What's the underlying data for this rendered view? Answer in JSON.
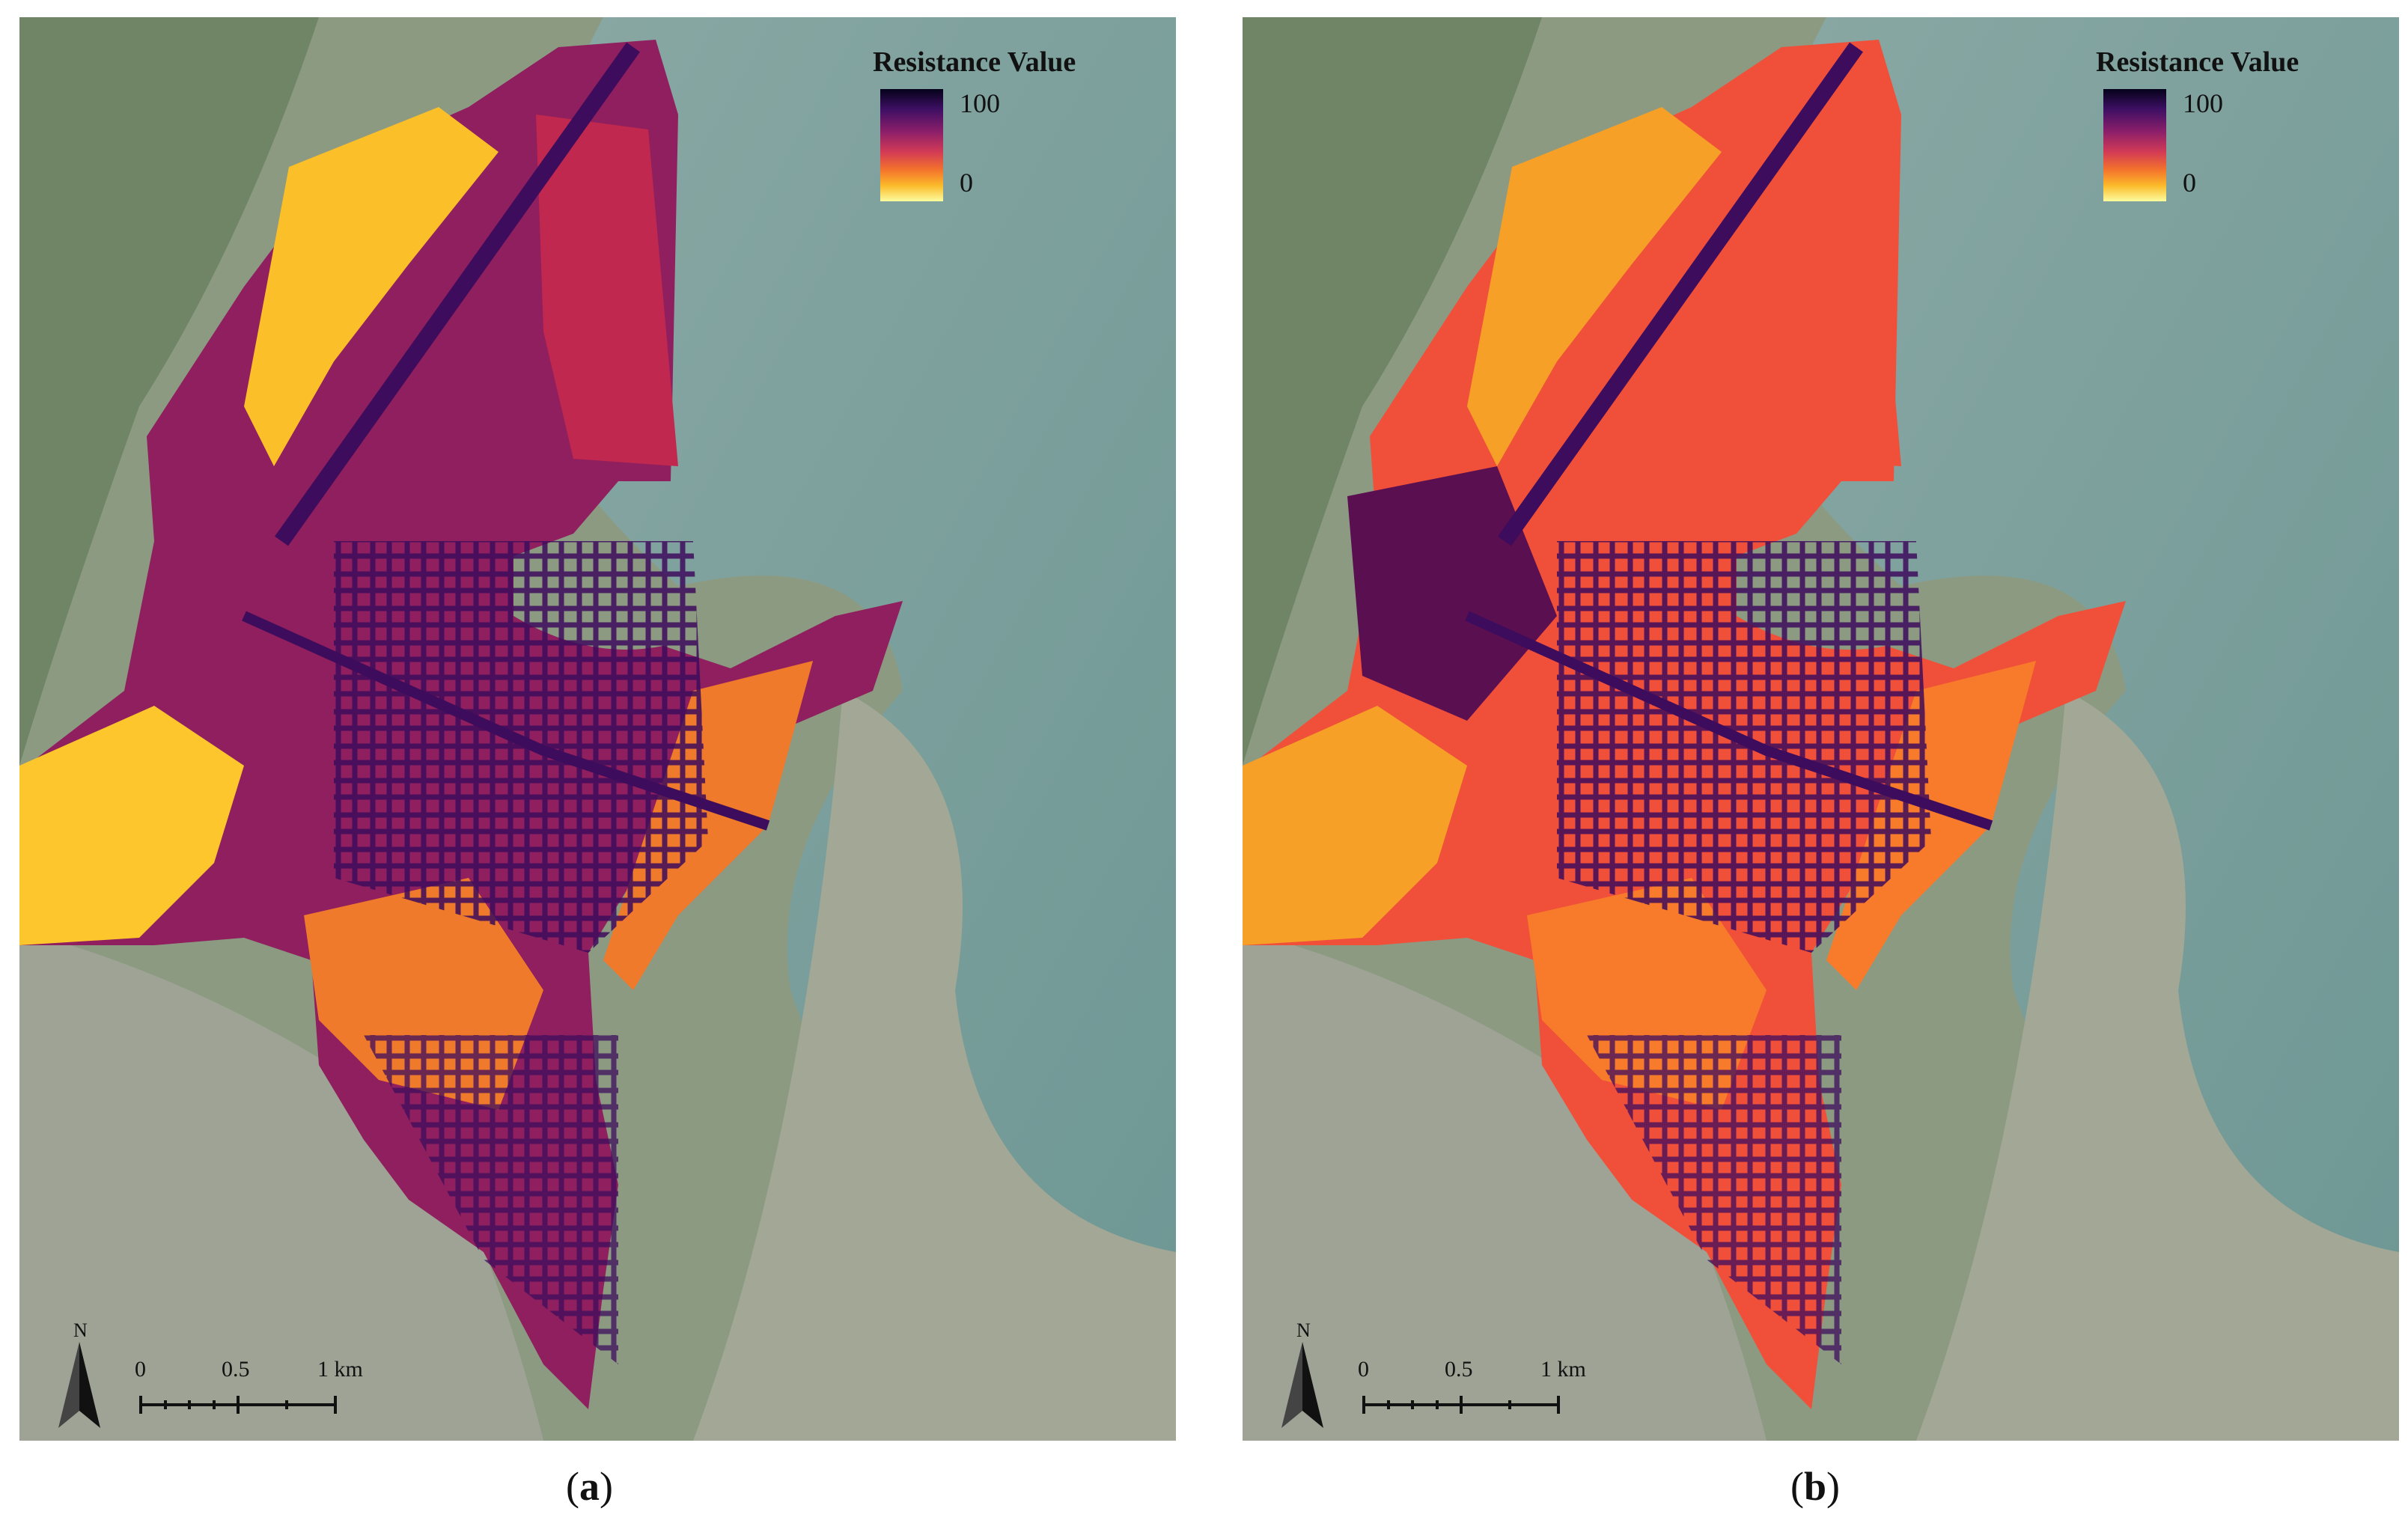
{
  "panels": [
    {
      "id": "a",
      "caption_letter": "a",
      "legend": {
        "title": "Resistance Value",
        "max": "100",
        "min": "0"
      },
      "scale_bar": {
        "labels": [
          "0",
          "0.5",
          "1 km"
        ]
      },
      "north_label": "N",
      "colors": {
        "roads": "#3d0c5c",
        "urban": "#8f1f5e",
        "open": "#fbbf2a",
        "port": "#c0284f",
        "mid": "#f07a2c"
      }
    },
    {
      "id": "b",
      "caption_letter": "b",
      "legend": {
        "title": "Resistance Value",
        "max": "100",
        "min": "0"
      },
      "scale_bar": {
        "labels": [
          "0",
          "0.5",
          "1 km"
        ]
      },
      "north_label": "N",
      "colors": {
        "roads": "#3d0c5c",
        "urban": "#f0503a",
        "open": "#f6a027",
        "port": "#f0503a",
        "mid": "#f77b2a"
      }
    }
  ],
  "colormap": [
    "#05021a",
    "#3e0f64",
    "#8c1f6a",
    "#d23a55",
    "#f4732c",
    "#fbba2a",
    "#fcfd9e"
  ]
}
